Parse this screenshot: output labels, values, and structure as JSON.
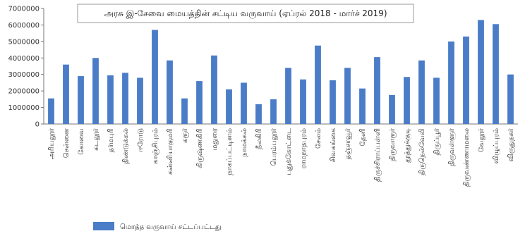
{
  "chart_data": {
    "type": "bar",
    "title": "அரசு இ-சேவை மையத்தின் சட்டிய வருவாய் (ஏப்ரல் 2018 - மார்ச் 2019)",
    "legend": [
      {
        "label": "மொத்த வருவாய் சட்டப்பட்டது",
        "color": "#4a7cc7"
      }
    ],
    "series": [
      {
        "name": "மொத்த வருவாய் சட்டப்பட்டது",
        "color": "#4a7cc7",
        "values": [
          1550000,
          3600000,
          2900000,
          4000000,
          2950000,
          3100000,
          2800000,
          5700000,
          3850000,
          1550000,
          2600000,
          4150000,
          2100000,
          2500000,
          1200000,
          1500000,
          3400000,
          2700000,
          4750000,
          2650000,
          3400000,
          2150000,
          4050000,
          1750000,
          2850000,
          3850000,
          2800000,
          5000000,
          5300000,
          6300000,
          6050000,
          3000000
        ]
      }
    ],
    "categories": [
      "அரியலூர்",
      "சென்னை",
      "கோவை",
      "கடலூர்",
      "தர்மபுரி",
      "திண்டுக்கல்",
      "ஈரோடு",
      "காஞ்சிபுரம்",
      "கன்னியாகுமரி",
      "கரூர்",
      "கிருஷ்ணகிரி",
      "மதுரை",
      "நாகப்பட்டினம்",
      "நாமக்கல்",
      "நீலகிரி",
      "பெரம்பலூர்",
      "புதுக்கோட்டை",
      "ராமநாதபுரம்",
      "சேலம்",
      "சிவகங்கை",
      "தஞ்சாவூர்",
      "தேனி",
      "திருச்சிராப்பள்ளி",
      "திருவாரூர்",
      "தூத்துக்குடி",
      "திருநெல்வேலி",
      "திருப்பூர்",
      "திருவள்ளூர்",
      "திருவண்ணாமலை",
      "வேலூர்",
      "விழுப்புரம்",
      "விருதுநகர்"
    ],
    "ylim": [
      0,
      7000000
    ],
    "yticks": [
      0,
      1000000,
      2000000,
      3000000,
      4000000,
      5000000,
      6000000,
      7000000
    ],
    "ytick_labels": [
      "0",
      "1000000",
      "2000000",
      "3000000",
      "4000000",
      "5000000",
      "6000000",
      "7000000"
    ],
    "grid": false,
    "legend_position": "bottom-left"
  }
}
